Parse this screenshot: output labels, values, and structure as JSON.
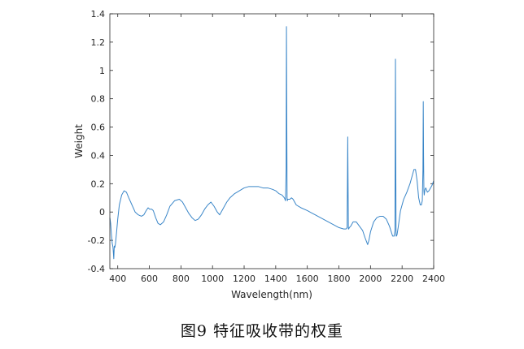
{
  "caption": "图9 特征吸收带的权重",
  "chart_data": {
    "type": "line",
    "title": "",
    "xlabel": "Wavelength(nm)",
    "ylabel": "Weight",
    "xlim": [
      350,
      2400
    ],
    "ylim": [
      -0.4,
      1.4
    ],
    "xticks": [
      400,
      600,
      800,
      1000,
      1200,
      1400,
      1600,
      1800,
      2000,
      2200,
      2400
    ],
    "yticks": [
      -0.4,
      -0.2,
      0,
      0.2,
      0.4,
      0.6,
      0.8,
      1,
      1.2,
      1.4
    ],
    "grid": false,
    "line_color": "#3a86c8",
    "series": [
      {
        "name": "",
        "x": [
          350,
          355,
          360,
          365,
          370,
          375,
          378,
          382,
          386,
          392,
          400,
          410,
          425,
          440,
          455,
          470,
          490,
          510,
          530,
          550,
          565,
          580,
          592,
          602,
          615,
          625,
          640,
          655,
          670,
          690,
          710,
          730,
          760,
          790,
          810,
          830,
          850,
          870,
          890,
          910,
          930,
          950,
          970,
          990,
          1010,
          1030,
          1045,
          1060,
          1075,
          1090,
          1110,
          1140,
          1170,
          1200,
          1230,
          1260,
          1290,
          1320,
          1350,
          1380,
          1400,
          1420,
          1440,
          1455,
          1462,
          1466,
          1468,
          1470,
          1472,
          1474,
          1476,
          1480,
          1490,
          1500,
          1510,
          1520,
          1530,
          1560,
          1600,
          1650,
          1700,
          1750,
          1800,
          1830,
          1845,
          1852,
          1854,
          1856,
          1858,
          1860,
          1862,
          1866,
          1875,
          1890,
          1910,
          1930,
          1950,
          1965,
          1975,
          1982,
          1990,
          2000,
          2020,
          2040,
          2060,
          2080,
          2100,
          2120,
          2140,
          2150,
          2155,
          2158,
          2160,
          2162,
          2164,
          2168,
          2175,
          2190,
          2210,
          2230,
          2250,
          2265,
          2275,
          2285,
          2295,
          2305,
          2315,
          2322,
          2328,
          2332,
          2334,
          2336,
          2338,
          2340,
          2345,
          2350,
          2360,
          2370,
          2380,
          2390,
          2400
        ],
        "values": [
          -0.04,
          -0.08,
          -0.16,
          -0.22,
          -0.25,
          -0.33,
          -0.24,
          -0.25,
          -0.22,
          -0.15,
          -0.05,
          0.05,
          0.12,
          0.15,
          0.14,
          0.1,
          0.05,
          0.0,
          -0.02,
          -0.03,
          -0.02,
          0.01,
          0.03,
          0.02,
          0.02,
          0.01,
          -0.04,
          -0.08,
          -0.09,
          -0.07,
          -0.02,
          0.04,
          0.08,
          0.09,
          0.07,
          0.03,
          -0.01,
          -0.04,
          -0.06,
          -0.05,
          -0.02,
          0.02,
          0.05,
          0.07,
          0.04,
          0.0,
          -0.02,
          0.01,
          0.04,
          0.07,
          0.1,
          0.13,
          0.15,
          0.17,
          0.18,
          0.18,
          0.18,
          0.17,
          0.17,
          0.16,
          0.15,
          0.13,
          0.12,
          0.1,
          0.08,
          0.3,
          1.31,
          0.7,
          0.1,
          0.08,
          0.09,
          0.09,
          0.09,
          0.1,
          0.09,
          0.07,
          0.05,
          0.03,
          0.01,
          -0.02,
          -0.05,
          -0.08,
          -0.11,
          -0.12,
          -0.12,
          -0.11,
          0.2,
          0.53,
          0.2,
          -0.12,
          -0.12,
          -0.11,
          -0.1,
          -0.07,
          -0.07,
          -0.1,
          -0.13,
          -0.18,
          -0.21,
          -0.23,
          -0.2,
          -0.14,
          -0.07,
          -0.04,
          -0.03,
          -0.03,
          -0.05,
          -0.1,
          -0.17,
          -0.17,
          -0.13,
          1.08,
          0.4,
          -0.17,
          -0.17,
          -0.16,
          -0.11,
          0.01,
          0.09,
          0.14,
          0.2,
          0.26,
          0.3,
          0.3,
          0.22,
          0.1,
          0.05,
          0.05,
          0.08,
          0.3,
          0.78,
          0.4,
          0.15,
          0.12,
          0.16,
          0.17,
          0.14,
          0.15,
          0.17,
          0.19,
          0.22
        ]
      }
    ]
  }
}
